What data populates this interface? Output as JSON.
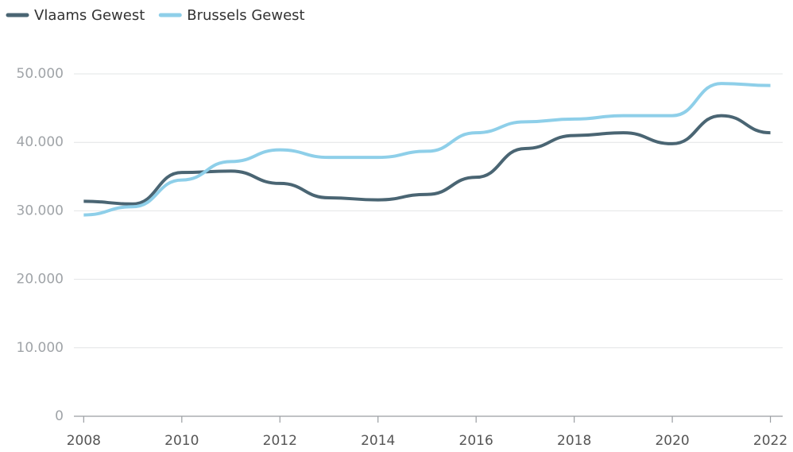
{
  "chart_data": {
    "type": "line",
    "x": [
      2008,
      2009,
      2010,
      2011,
      2012,
      2013,
      2014,
      2015,
      2016,
      2017,
      2018,
      2019,
      2020,
      2021,
      2022
    ],
    "series": [
      {
        "name": "Vlaams Gewest",
        "color": "#4a6573",
        "values": [
          31400,
          31000,
          35600,
          35800,
          34000,
          31900,
          31600,
          32400,
          34900,
          39100,
          41000,
          41400,
          39800,
          43900,
          41400
        ]
      },
      {
        "name": "Brussels Gewest",
        "color": "#8ecfe9",
        "values": [
          29400,
          30600,
          34500,
          37200,
          38900,
          37800,
          37800,
          38700,
          41400,
          43000,
          43400,
          43900,
          43900,
          48600,
          48300
        ]
      }
    ],
    "xlim": [
      2007.8,
      2022.25
    ],
    "xticks": [
      2008,
      2010,
      2012,
      2014,
      2016,
      2018,
      2020,
      2022
    ],
    "ylim": [
      0,
      50000
    ],
    "yticks": [
      0,
      {
        "value": 10000,
        "label": "10.000"
      },
      {
        "value": 20000,
        "label": "20.000"
      },
      {
        "value": 30000,
        "label": "30.000"
      },
      {
        "value": 40000,
        "label": "40.000"
      },
      {
        "value": 50000,
        "label": "50.000"
      }
    ],
    "grid": true,
    "legend": "top-left"
  }
}
